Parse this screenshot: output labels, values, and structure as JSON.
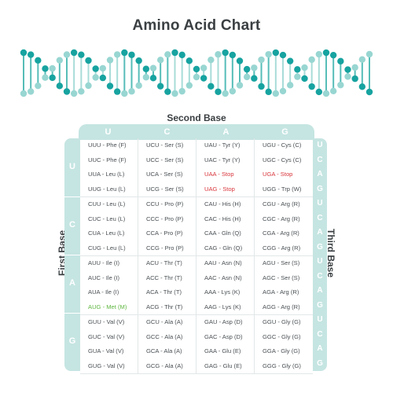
{
  "title": "Amino Acid Chart",
  "labels": {
    "second_base": "Second Base",
    "first_base": "First Base",
    "third_base": "Third Base"
  },
  "colors": {
    "teal_dark": "#17a3a0",
    "teal_light": "#98d6d2",
    "header_bg": "#c5e5e2",
    "stop": "#d9373d",
    "start": "#5fb741"
  },
  "second_base_headers": [
    "U",
    "C",
    "A",
    "G"
  ],
  "first_base_labels": [
    "U",
    "C",
    "A",
    "G"
  ],
  "third_base_labels": [
    "U",
    "C",
    "A",
    "G",
    "U",
    "C",
    "A",
    "G",
    "U",
    "C",
    "A",
    "G",
    "U",
    "C",
    "A",
    "G"
  ],
  "cells": [
    [
      "UUU - Phe (F)",
      "UUC - Phe (F)",
      "UUA - Leu (L)",
      "UUG - Leu (L)"
    ],
    [
      "UCU - Ser (S)",
      "UCC - Ser (S)",
      "UCA - Ser (S)",
      "UCG - Ser (S)"
    ],
    [
      "UAU - Tyr (Y)",
      "UAC - Tyr (Y)",
      "UAA - Stop",
      "UAG - Stop"
    ],
    [
      "UGU - Cys (C)",
      "UGC - Cys (C)",
      "UGA - Stop",
      "UGG - Trp (W)"
    ],
    [
      "CUU - Leu (L)",
      "CUC - Leu (L)",
      "CUA - Leu (L)",
      "CUG - Leu (L)"
    ],
    [
      "CCU - Pro (P)",
      "CCC - Pro (P)",
      "CCA - Pro (P)",
      "CCG - Pro (P)"
    ],
    [
      "CAU - His (H)",
      "CAC - His (H)",
      "CAA - Gln (Q)",
      "CAG - Gln (Q)"
    ],
    [
      "CGU - Arg (R)",
      "CGC - Arg (R)",
      "CGA - Arg (R)",
      "CGG - Arg (R)"
    ],
    [
      "AUU - Ile (I)",
      "AUC - Ile (I)",
      "AUA - Ile (I)",
      "AUG - Met (M)"
    ],
    [
      "ACU - Thr (T)",
      "ACC - Thr (T)",
      "ACA - Thr (T)",
      "ACG - Thr (T)"
    ],
    [
      "AAU - Asn (N)",
      "AAC - Asn (N)",
      "AAA - Lys (K)",
      "AAG - Lys (K)"
    ],
    [
      "AGU - Ser (S)",
      "AGC - Ser (S)",
      "AGA - Arg (R)",
      "AGG - Arg (R)"
    ],
    [
      "GUU - Val (V)",
      "GUC - Val (V)",
      "GUA - Val (V)",
      "GUG - Val (V)"
    ],
    [
      "GCU - Ala (A)",
      "GCC - Ala (A)",
      "GCA - Ala (A)",
      "GCG - Ala (A)"
    ],
    [
      "GAU - Asp (D)",
      "GAC - Asp (D)",
      "GAA - Glu (E)",
      "GAG - Glu (E)"
    ],
    [
      "GGU - Gly (G)",
      "GGC - Gly (G)",
      "GGA - Gly (G)",
      "GGG - Gly (G)"
    ]
  ],
  "stop_codons": [
    "UAA - Stop",
    "UAG - Stop",
    "UGA - Stop"
  ],
  "start_codons": [
    "AUG - Met (M)"
  ]
}
